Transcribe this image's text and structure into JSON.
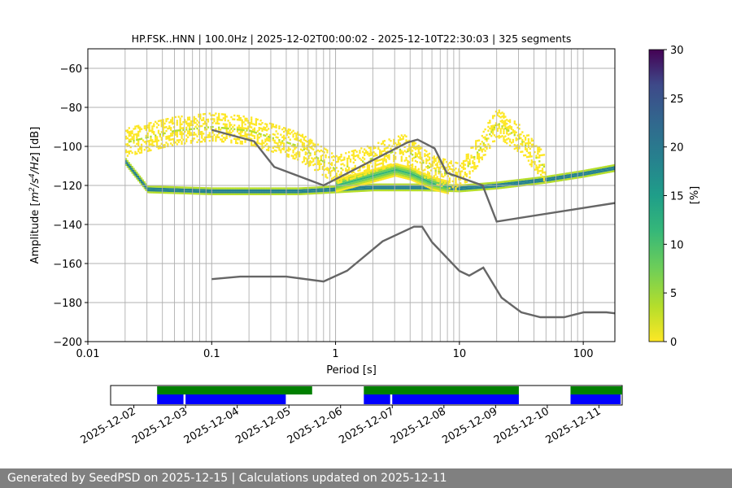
{
  "chart_data": {
    "type": "heatmap",
    "title": "HP.FSK..HNN | 100.0Hz | 2025-12-02T00:00:02 - 2025-12-10T22:30:03 | 325 segments",
    "xlabel": "Period [s]",
    "ylabel_prefix": "Amplitude [",
    "ylabel_units": [
      "m",
      "2",
      "/s",
      "4",
      "/Hz"
    ],
    "ylabel_suffix": "] [dB]",
    "xscale": "log",
    "xlim": [
      0.01,
      180
    ],
    "ylim": [
      -200,
      -50
    ],
    "x_ticks": [
      {
        "value": 0.01,
        "label": "0.01"
      },
      {
        "value": 0.1,
        "label": "0.1"
      },
      {
        "value": 1,
        "label": "1"
      },
      {
        "value": 10,
        "label": "10"
      },
      {
        "value": 100,
        "label": "100"
      }
    ],
    "y_ticks": [
      {
        "value": -60,
        "label": "−60"
      },
      {
        "value": -80,
        "label": "−80"
      },
      {
        "value": -100,
        "label": "−100"
      },
      {
        "value": -120,
        "label": "−120"
      },
      {
        "value": -140,
        "label": "−140"
      },
      {
        "value": -160,
        "label": "−160"
      },
      {
        "value": -180,
        "label": "−180"
      },
      {
        "value": -200,
        "label": "−200"
      }
    ],
    "grid": true,
    "colorbar": {
      "label": "[%]",
      "min": 0,
      "max": 30,
      "ticks": [
        {
          "value": 0,
          "label": "0"
        },
        {
          "value": 5,
          "label": "5"
        },
        {
          "value": 10,
          "label": "10"
        },
        {
          "value": 15,
          "label": "15"
        },
        {
          "value": 20,
          "label": "20"
        },
        {
          "value": 25,
          "label": "25"
        },
        {
          "value": 30,
          "label": "30"
        }
      ]
    },
    "noise_models": [
      {
        "name": "high-noise-model",
        "points": [
          [
            0.1,
            -91.5
          ],
          [
            0.22,
            -97.4
          ],
          [
            0.32,
            -110.5
          ],
          [
            0.8,
            -120
          ],
          [
            3.8,
            -98
          ],
          [
            4.6,
            -96.5
          ],
          [
            6.3,
            -101
          ],
          [
            7.9,
            -113.5
          ],
          [
            15.4,
            -120
          ],
          [
            20,
            -138.5
          ],
          [
            180,
            -129
          ]
        ]
      },
      {
        "name": "low-noise-model",
        "points": [
          [
            0.1,
            -168
          ],
          [
            0.17,
            -166.7
          ],
          [
            0.4,
            -166.7
          ],
          [
            0.8,
            -169.2
          ],
          [
            1.24,
            -163.7
          ],
          [
            2.4,
            -148.6
          ],
          [
            4.3,
            -141.1
          ],
          [
            5,
            -141.1
          ],
          [
            6,
            -149
          ],
          [
            10,
            -163.8
          ],
          [
            12,
            -166.2
          ],
          [
            15.6,
            -162.1
          ],
          [
            21.9,
            -177.5
          ],
          [
            31.6,
            -185
          ],
          [
            45,
            -187.5
          ],
          [
            70,
            -187.5
          ],
          [
            101,
            -185
          ],
          [
            154,
            -185
          ],
          [
            180,
            -185.5
          ]
        ]
      }
    ],
    "density_bands": [
      {
        "name": "main-floor",
        "points": [
          [
            0.02,
            -108
          ],
          [
            0.03,
            -122
          ],
          [
            0.1,
            -123
          ],
          [
            0.5,
            -123
          ],
          [
            1,
            -122
          ],
          [
            2,
            -121
          ],
          [
            3,
            -121
          ],
          [
            5,
            -121
          ],
          [
            10,
            -121.5
          ],
          [
            20,
            -120
          ],
          [
            50,
            -117
          ],
          [
            100,
            -114
          ],
          [
            180,
            -111
          ]
        ],
        "width_db": 3,
        "peak_percent": 28
      },
      {
        "name": "microseism-bump",
        "points": [
          [
            1,
            -120
          ],
          [
            2,
            -115
          ],
          [
            3,
            -112
          ],
          [
            4,
            -114
          ],
          [
            6,
            -119
          ],
          [
            8,
            -121
          ]
        ],
        "width_db": 6,
        "peak_percent": 12
      },
      {
        "name": "scatter-upper",
        "points": [
          [
            0.02,
            -98
          ],
          [
            0.05,
            -92
          ],
          [
            0.1,
            -90
          ],
          [
            0.2,
            -92
          ],
          [
            0.5,
            -100
          ],
          [
            1,
            -112
          ],
          [
            2,
            -106
          ],
          [
            3.5,
            -101
          ],
          [
            6,
            -112
          ],
          [
            10,
            -116
          ],
          [
            20,
            -88
          ],
          [
            30,
            -96
          ],
          [
            50,
            -112
          ]
        ],
        "width_db": 14,
        "peak_percent": 2
      }
    ]
  },
  "availability": {
    "date_labels": [
      "2025-12-02",
      "2025-12-03",
      "2025-12-04",
      "2025-12-05",
      "2025-12-06",
      "2025-12-07",
      "2025-12-08",
      "2025-12-09",
      "2025-12-10",
      "2025-12-11"
    ],
    "green_spans": [
      [
        0.45,
        3.45
      ],
      [
        4.45,
        7.45
      ],
      [
        8.45,
        9.45
      ]
    ],
    "blue_spans": [
      [
        0.45,
        0.96
      ],
      [
        1.0,
        2.94
      ],
      [
        4.45,
        4.96
      ],
      [
        5.0,
        7.45
      ],
      [
        8.45,
        9.42
      ]
    ],
    "range": [
      -0.45,
      9.45
    ],
    "green_color": "#008000",
    "blue_color": "#0000ff"
  },
  "footer": {
    "text": "Generated by SeedPSD on 2025-12-15 | Calculations updated on 2025-12-11"
  }
}
